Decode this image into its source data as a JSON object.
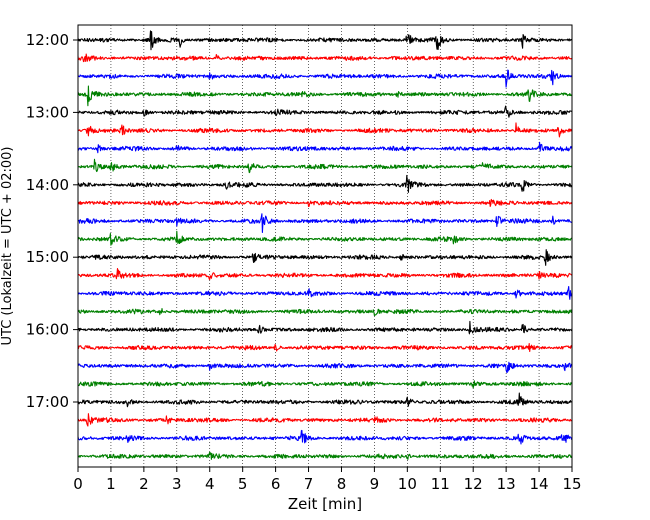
{
  "chart_data": {
    "type": "line",
    "subtype": "helicorder-seismogram",
    "xlabel": "Zeit  [min]",
    "ylabel": "UTC (Lokalzeit = UTC + 02:00)",
    "xlim": [
      0,
      15
    ],
    "x_ticks": [
      "0",
      "1",
      "2",
      "3",
      "4",
      "5",
      "6",
      "7",
      "8",
      "9",
      "10",
      "11",
      "12",
      "13",
      "14",
      "15"
    ],
    "y_tick_labels": [
      "12:00",
      "13:00",
      "14:00",
      "15:00",
      "16:00",
      "17:00"
    ],
    "grid": "vertical dotted lines at each minute",
    "trace_colors": [
      "#000000",
      "#ff0000",
      "#0000ff",
      "#008000"
    ],
    "traces": [
      {
        "start": "12:00",
        "color": "#000000",
        "events": [
          [
            2.2,
            0.9
          ],
          [
            3.1,
            0.6
          ],
          [
            10.0,
            0.7
          ],
          [
            10.9,
            0.9
          ],
          [
            13.5,
            0.6
          ]
        ]
      },
      {
        "start": "12:15",
        "color": "#ff0000",
        "events": [
          [
            0.2,
            0.3
          ],
          [
            4.2,
            0.3
          ],
          [
            9.5,
            0.25
          ]
        ]
      },
      {
        "start": "12:30",
        "color": "#0000ff",
        "events": [
          [
            13.0,
            0.8
          ],
          [
            14.4,
            0.7
          ],
          [
            4.0,
            0.3
          ],
          [
            7.5,
            0.25
          ]
        ]
      },
      {
        "start": "12:45",
        "color": "#008000",
        "events": [
          [
            0.3,
            0.8
          ],
          [
            13.7,
            0.6
          ],
          [
            6.8,
            0.4
          ],
          [
            9.7,
            0.3
          ]
        ]
      },
      {
        "start": "13:00",
        "color": "#000000",
        "events": [
          [
            13.0,
            0.8
          ],
          [
            2.0,
            0.3
          ],
          [
            6.0,
            0.3
          ]
        ]
      },
      {
        "start": "13:15",
        "color": "#ff0000",
        "events": [
          [
            0.3,
            0.6
          ],
          [
            1.3,
            0.6
          ],
          [
            13.3,
            0.6
          ],
          [
            14.6,
            0.5
          ]
        ]
      },
      {
        "start": "13:30",
        "color": "#0000ff",
        "events": [
          [
            0.6,
            0.4
          ],
          [
            14.0,
            0.6
          ],
          [
            3.0,
            0.3
          ]
        ]
      },
      {
        "start": "13:45",
        "color": "#008000",
        "events": [
          [
            0.5,
            0.6
          ],
          [
            1.0,
            0.5
          ],
          [
            5.2,
            0.6
          ],
          [
            12.3,
            0.35
          ]
        ]
      },
      {
        "start": "14:00",
        "color": "#000000",
        "events": [
          [
            10.0,
            0.9
          ],
          [
            13.5,
            0.6
          ],
          [
            4.5,
            0.3
          ]
        ]
      },
      {
        "start": "14:15",
        "color": "#ff0000",
        "events": [
          [
            7.0,
            0.3
          ],
          [
            12.5,
            0.3
          ]
        ]
      },
      {
        "start": "14:30",
        "color": "#0000ff",
        "events": [
          [
            5.6,
            0.9
          ],
          [
            12.7,
            0.8
          ],
          [
            14.4,
            0.5
          ],
          [
            3.0,
            0.35
          ]
        ]
      },
      {
        "start": "14:45",
        "color": "#008000",
        "events": [
          [
            1.0,
            0.5
          ],
          [
            3.0,
            0.5
          ],
          [
            11.4,
            0.35
          ]
        ]
      },
      {
        "start": "15:00",
        "color": "#000000",
        "events": [
          [
            5.3,
            0.5
          ],
          [
            14.2,
            0.6
          ],
          [
            9.8,
            0.3
          ]
        ]
      },
      {
        "start": "15:15",
        "color": "#ff0000",
        "events": [
          [
            1.2,
            0.5
          ],
          [
            4.0,
            0.3
          ],
          [
            14.0,
            0.3
          ]
        ]
      },
      {
        "start": "15:30",
        "color": "#0000ff",
        "events": [
          [
            13.3,
            0.6
          ],
          [
            14.9,
            0.7
          ],
          [
            7.0,
            0.3
          ]
        ]
      },
      {
        "start": "15:45",
        "color": "#008000",
        "events": [
          [
            2.5,
            0.3
          ],
          [
            9.0,
            0.3
          ]
        ]
      },
      {
        "start": "16:00",
        "color": "#000000",
        "events": [
          [
            11.9,
            0.6
          ],
          [
            13.5,
            0.6
          ],
          [
            5.5,
            0.35
          ]
        ]
      },
      {
        "start": "16:15",
        "color": "#ff0000",
        "events": [
          [
            13.7,
            0.4
          ],
          [
            6.0,
            0.3
          ]
        ]
      },
      {
        "start": "16:30",
        "color": "#0000ff",
        "events": [
          [
            13.0,
            0.6
          ],
          [
            14.8,
            0.5
          ],
          [
            4.0,
            0.3
          ]
        ]
      },
      {
        "start": "16:45",
        "color": "#008000",
        "events": [
          [
            12.0,
            0.25
          ]
        ]
      },
      {
        "start": "17:00",
        "color": "#000000",
        "events": [
          [
            13.4,
            0.6
          ],
          [
            10.0,
            0.35
          ],
          [
            1.5,
            0.3
          ]
        ]
      },
      {
        "start": "17:15",
        "color": "#ff0000",
        "events": [
          [
            0.3,
            0.5
          ],
          [
            2.7,
            0.4
          ],
          [
            9.0,
            0.3
          ]
        ]
      },
      {
        "start": "17:30",
        "color": "#0000ff",
        "events": [
          [
            6.8,
            0.7
          ],
          [
            13.4,
            0.6
          ],
          [
            14.7,
            0.7
          ],
          [
            1.5,
            0.3
          ]
        ]
      },
      {
        "start": "17:45",
        "color": "#008000",
        "events": [
          [
            4.0,
            0.2
          ],
          [
            10.0,
            0.2
          ]
        ]
      }
    ]
  }
}
